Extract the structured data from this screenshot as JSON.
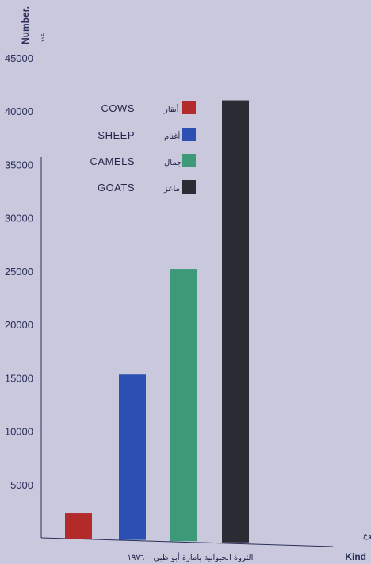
{
  "chart_data": {
    "type": "bar",
    "categories": [
      "COWS",
      "SHEEP",
      "CAMELS",
      "GOATS"
    ],
    "categories_arabic": [
      "أبقار",
      "أغنام",
      "جمال",
      "ماعز"
    ],
    "values": [
      2300,
      15300,
      25200,
      41000
    ],
    "colors": [
      "#b22a2a",
      "#2c4fb3",
      "#3d9a78",
      "#2b2b33"
    ],
    "ylabel": "Number.",
    "ylabel_arabic": "عدد",
    "xlabel": "Kind",
    "xlabel_arabic": "النوع",
    "caption": "الثروة الحيوانية بامارة أبو ظبي – ١٩٧٦",
    "ylim": [
      0,
      45000
    ],
    "yticks": [
      5000,
      10000,
      15000,
      20000,
      25000,
      30000,
      35000,
      40000,
      45000
    ],
    "grid": false,
    "legend_position": "upper-center"
  },
  "colors": {
    "background": "#c9c8dc",
    "axis": "#2a2f5a"
  }
}
